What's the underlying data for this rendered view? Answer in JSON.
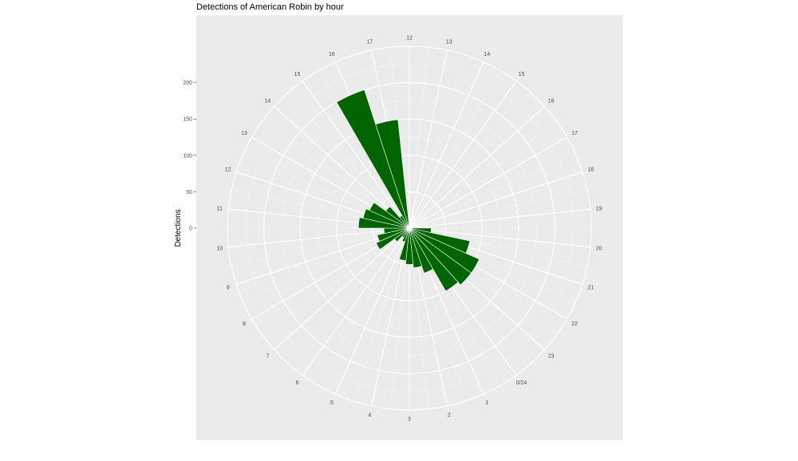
{
  "chart_data": {
    "type": "bar",
    "coord": "polar",
    "title": "Detections of American Robin by hour",
    "ylabel": "Detections",
    "xlabel": "",
    "ylim": [
      0,
      250
    ],
    "y_ticks": [
      0,
      50,
      100,
      150,
      200
    ],
    "x_labels": [
      "0/24",
      "1",
      "2",
      "3",
      "4",
      "5",
      "6",
      "7",
      "8",
      "9",
      "10",
      "11",
      "12",
      "13",
      "14",
      "15",
      "16",
      "17",
      "18",
      "19",
      "20",
      "21",
      "22",
      "23"
    ],
    "bar_color": "#006400",
    "panel_color": "#ebebeb",
    "grid_color": "#ffffff",
    "hours": [
      13,
      14,
      15,
      16,
      17,
      18,
      19,
      20,
      21,
      22,
      23,
      24,
      25,
      26,
      27,
      28,
      29,
      30,
      31,
      32,
      33,
      34,
      35,
      36,
      37,
      38,
      39,
      40,
      41,
      42
    ],
    "values": [
      0,
      0,
      0,
      0,
      0,
      0,
      0,
      30,
      85,
      105,
      105,
      100,
      65,
      55,
      50,
      45,
      20,
      15,
      25,
      50,
      45,
      35,
      70,
      65,
      60,
      40,
      20,
      200,
      150,
      0
    ]
  }
}
